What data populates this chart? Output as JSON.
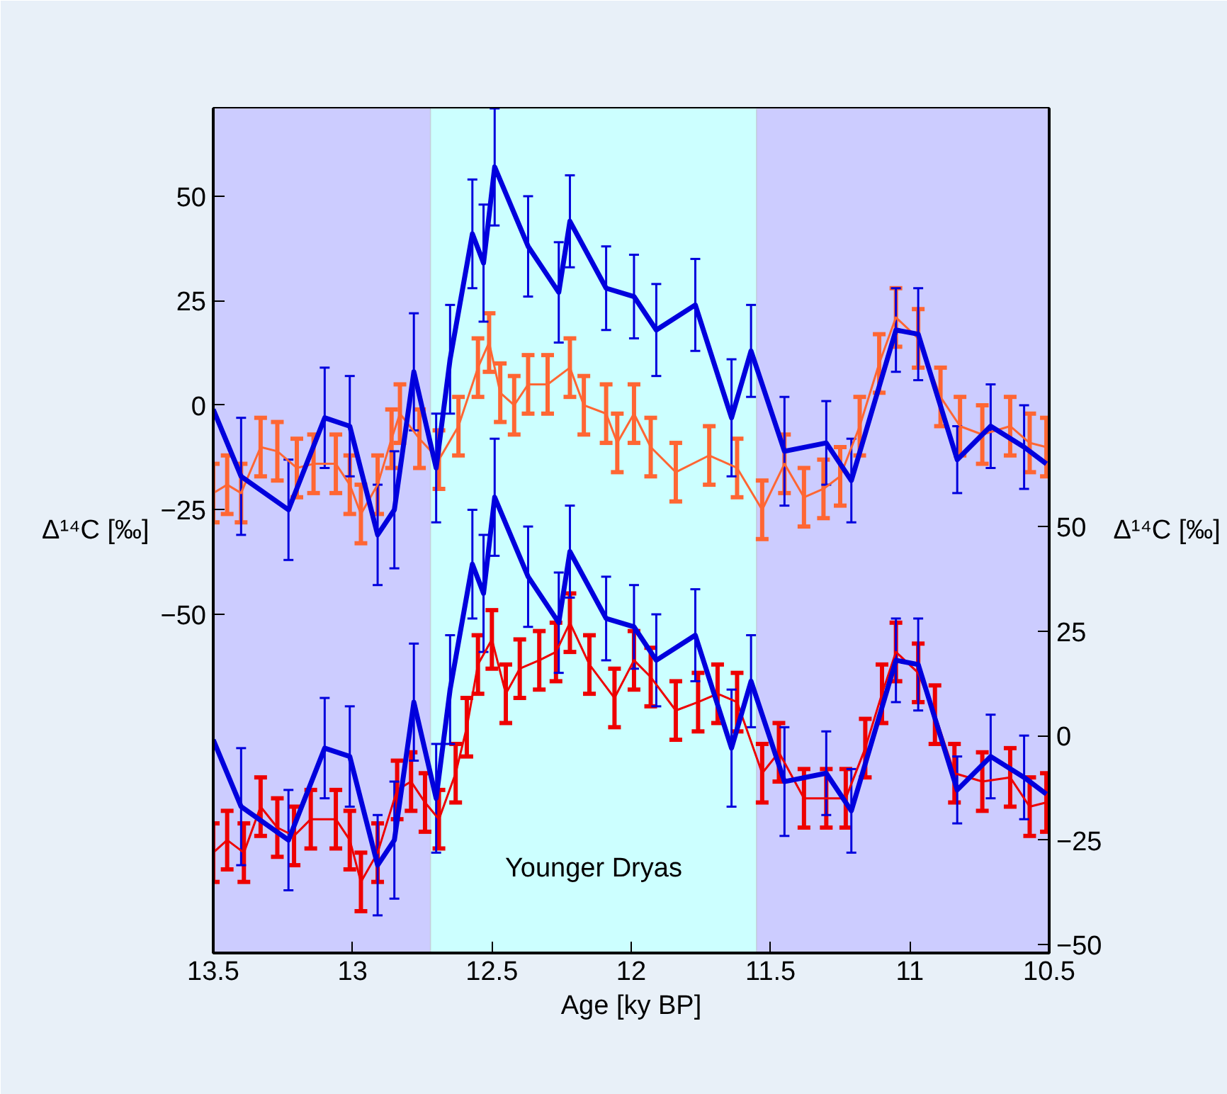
{
  "chart_data": {
    "type": "line",
    "xlabel": "Age [ky BP]",
    "ylabel": "Δ¹⁴C [‰]",
    "y2label": "Δ¹⁴C [‰]",
    "xlim": [
      13.5,
      10.5
    ],
    "xticks": [
      13.5,
      13,
      12.5,
      12,
      11.5,
      11,
      10.5
    ],
    "ylim": [
      -131,
      71
    ],
    "yticks": [
      50,
      25,
      0,
      -25,
      -50
    ],
    "y2lim": [
      -52,
      150
    ],
    "y2ticks": [
      50,
      25,
      0,
      -25,
      -50
    ],
    "bands": [
      {
        "axis": "x",
        "from": 13.5,
        "to": 12.72,
        "label": null,
        "color": "#ccccff"
      },
      {
        "axis": "x",
        "from": 12.72,
        "to": 11.55,
        "label": "Younger Dryas",
        "color": "#ccffff"
      },
      {
        "axis": "x",
        "from": 11.55,
        "to": 10.5,
        "label": null,
        "color": "#ccccff"
      }
    ],
    "series": [
      {
        "color": "#ff6633",
        "axis": "y",
        "x": [
          13.5,
          13.45,
          13.4,
          13.33,
          13.27,
          13.2,
          13.14,
          13.06,
          13.01,
          12.97,
          12.91,
          12.86,
          12.83,
          12.76,
          12.69,
          12.62,
          12.55,
          12.51,
          12.47,
          12.42,
          12.37,
          12.3,
          12.22,
          12.17,
          12.09,
          12.05,
          11.99,
          11.93,
          11.84,
          11.72,
          11.62,
          11.53,
          11.45,
          11.38,
          11.31,
          11.25,
          11.18,
          11.11,
          11.05,
          10.97,
          10.89,
          10.82,
          10.74,
          10.64,
          10.57,
          10.51
        ],
        "values": [
          -21,
          -19,
          -21,
          -10,
          -11,
          -15,
          -14,
          -14,
          -19,
          -26,
          -19,
          -8,
          -2,
          -8,
          -13,
          -5,
          9,
          15,
          3,
          0,
          5,
          5,
          9,
          0,
          -2,
          -9,
          -2,
          -10,
          -16,
          -12,
          -15,
          -25,
          -14,
          -22,
          -20,
          -17,
          -5,
          10,
          21,
          16,
          2,
          -5,
          -7,
          -5,
          -9,
          -10
        ],
        "errors": [
          7,
          7,
          7,
          7,
          7,
          7,
          7,
          7,
          7,
          7,
          7,
          7,
          7,
          7,
          7,
          7,
          7,
          7,
          7,
          7,
          7,
          7,
          7,
          7,
          7,
          7,
          7,
          7,
          7,
          7,
          7,
          7,
          7,
          7,
          7,
          7,
          7,
          7,
          7,
          7,
          7,
          7,
          7,
          7,
          7,
          7
        ]
      },
      {
        "color": "#0000dd",
        "axis": "y",
        "x": [
          13.5,
          13.4,
          13.23,
          13.1,
          13.01,
          12.91,
          12.85,
          12.78,
          12.7,
          12.65,
          12.57,
          12.53,
          12.49,
          12.37,
          12.26,
          12.22,
          12.09,
          11.99,
          11.91,
          11.77,
          11.64,
          11.57,
          11.45,
          11.3,
          11.21,
          11.05,
          10.97,
          10.83,
          10.71,
          10.59,
          10.51
        ],
        "values": [
          -1,
          -17,
          -25,
          -3,
          -5,
          -31,
          -25,
          8,
          -15,
          11,
          41,
          34,
          57,
          38,
          27,
          44,
          28,
          26,
          18,
          24,
          -3,
          13,
          -11,
          -9,
          -18,
          18,
          17,
          -13,
          -5,
          -10,
          -14
        ],
        "errors": [
          null,
          14,
          12,
          12,
          12,
          12,
          14,
          14,
          13,
          13,
          13,
          14,
          14,
          12,
          12,
          11,
          10,
          10,
          11,
          11,
          14,
          11,
          13,
          10,
          10,
          10,
          11,
          8,
          10,
          10,
          null
        ]
      },
      {
        "color": "#ee0000",
        "axis": "y2",
        "x": [
          13.5,
          13.45,
          13.39,
          13.33,
          13.27,
          13.21,
          13.15,
          13.06,
          13.01,
          12.97,
          12.91,
          12.84,
          12.79,
          12.74,
          12.69,
          12.63,
          12.59,
          12.55,
          12.5,
          12.45,
          12.4,
          12.33,
          12.27,
          12.22,
          12.15,
          12.06,
          11.99,
          11.93,
          11.84,
          11.76,
          11.69,
          11.62,
          11.53,
          11.47,
          11.38,
          11.3,
          11.23,
          11.16,
          11.1,
          11.05,
          10.97,
          10.91,
          10.84,
          10.74,
          10.64,
          10.57,
          10.51
        ],
        "values": [
          -28,
          -25,
          -28,
          -17,
          -22,
          -24,
          -20,
          -20,
          -25,
          -35,
          -28,
          -13,
          -11,
          -16,
          -20,
          -9,
          2,
          17,
          23,
          10,
          16,
          18,
          20,
          27,
          17,
          9,
          18,
          14,
          6,
          8,
          10,
          8,
          -9,
          -4,
          -15,
          -15,
          -15,
          -3,
          10,
          20,
          15,
          5,
          -9,
          -11,
          -10,
          -17,
          -16
        ],
        "errors": [
          7,
          7,
          7,
          7,
          7,
          7,
          7,
          7,
          7,
          7,
          7,
          7,
          7,
          7,
          7,
          7,
          7,
          7,
          7,
          7,
          7,
          7,
          7,
          7,
          7,
          7,
          7,
          7,
          7,
          7,
          7,
          7,
          7,
          7,
          7,
          7,
          7,
          7,
          7,
          7,
          7,
          7,
          7,
          7,
          7,
          7,
          7
        ]
      },
      {
        "color": "#0000dd",
        "axis": "y2",
        "x": [
          13.5,
          13.4,
          13.23,
          13.1,
          13.01,
          12.91,
          12.85,
          12.78,
          12.7,
          12.65,
          12.57,
          12.53,
          12.49,
          12.37,
          12.26,
          12.22,
          12.09,
          11.99,
          11.91,
          11.77,
          11.64,
          11.57,
          11.45,
          11.3,
          11.21,
          11.05,
          10.97,
          10.83,
          10.71,
          10.59,
          10.51
        ],
        "values": [
          -1,
          -17,
          -25,
          -3,
          -5,
          -31,
          -25,
          8,
          -15,
          11,
          41,
          34,
          57,
          38,
          27,
          44,
          28,
          26,
          18,
          24,
          -3,
          13,
          -11,
          -9,
          -18,
          18,
          17,
          -13,
          -5,
          -10,
          -14
        ],
        "errors": [
          null,
          14,
          12,
          12,
          12,
          12,
          14,
          14,
          13,
          13,
          13,
          14,
          14,
          12,
          12,
          11,
          10,
          10,
          11,
          11,
          14,
          11,
          13,
          10,
          10,
          10,
          11,
          8,
          10,
          10,
          null
        ]
      }
    ]
  }
}
